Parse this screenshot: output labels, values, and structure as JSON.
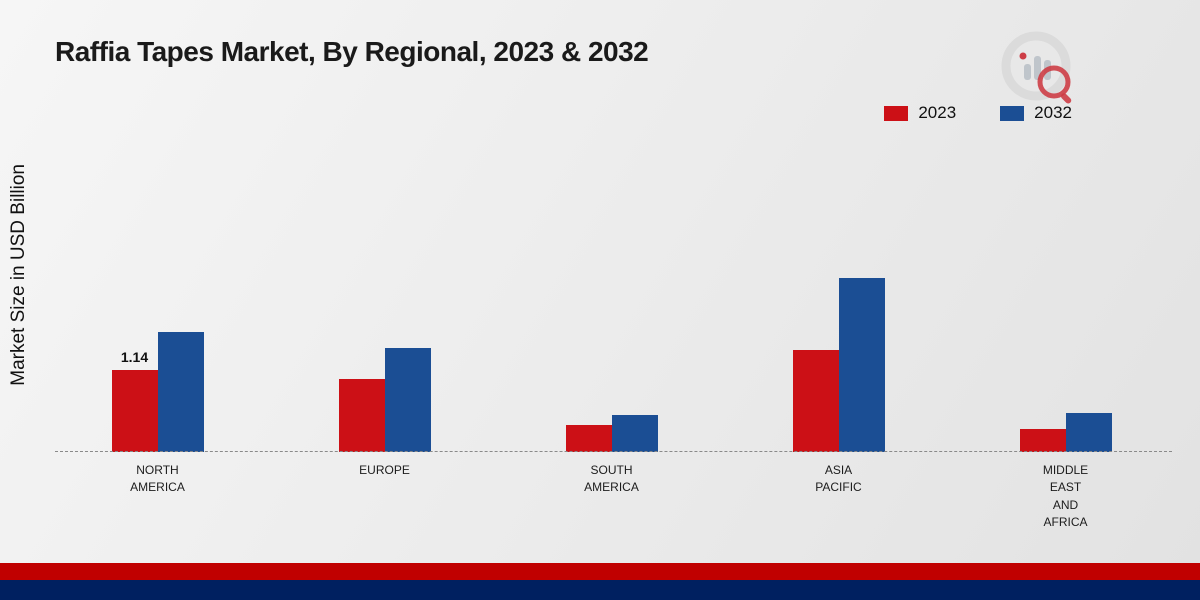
{
  "header": {
    "title": "Raffia Tapes Market, By Regional, 2023 & 2032"
  },
  "axes": {
    "y_label": "Market Size in USD Billion"
  },
  "branding": {
    "logo": "market-research-future-logo"
  },
  "colors": {
    "series_2023": "#cc1016",
    "series_2032": "#1b4e94",
    "footer_strip_red": "#c00000",
    "footer_strip_navy": "#002060",
    "baseline_gray": "#8a8a8a"
  },
  "chart_data": {
    "type": "bar",
    "title": "Raffia Tapes Market, By Regional, 2023 & 2032",
    "xlabel": "",
    "ylabel": "Market Size in USD Billion",
    "categories": [
      "NORTH\nAMERICA",
      "EUROPE",
      "SOUTH\nAMERICA",
      "ASIA\nPACIFIC",
      "MIDDLE\nEAST\nAND\nAFRICA"
    ],
    "series": [
      {
        "name": "2023",
        "color": "#cc1016",
        "values": [
          1.14,
          1.02,
          0.38,
          1.42,
          0.32
        ],
        "data_labels": [
          "1.14",
          "",
          "",
          "",
          ""
        ]
      },
      {
        "name": "2032",
        "color": "#1b4e94",
        "values": [
          1.66,
          1.45,
          0.52,
          2.42,
          0.54
        ],
        "data_labels": [
          "",
          "",
          "",
          "",
          ""
        ]
      }
    ],
    "ylim": [
      0,
      2.6
    ],
    "grid": false,
    "baseline_style": "dashed",
    "legend_position": "top-right"
  }
}
